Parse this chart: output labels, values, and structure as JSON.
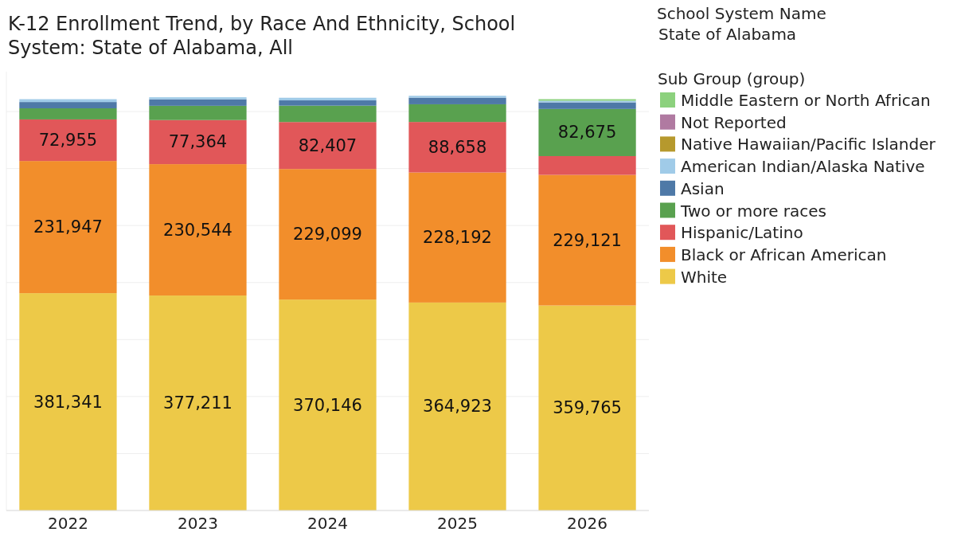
{
  "chart_data": {
    "type": "bar",
    "stacked": true,
    "title": "K-12 Enrollment Trend, by Race And Ethnicity, School System: State of Alabama, All",
    "annotations": [
      "School System Name",
      "State of Alabama"
    ],
    "legend_title": "Sub Group (group)",
    "legend": "right",
    "grid": "y",
    "tick_labels": "x",
    "ylim": [
      0,
      770000
    ],
    "yticks": [
      {
        "value": 0,
        "label": null
      },
      {
        "value": 100000,
        "label": null
      },
      {
        "value": 200000,
        "label": null
      },
      {
        "value": 300000,
        "label": null
      },
      {
        "value": 400000,
        "label": null
      },
      {
        "value": 500000,
        "label": null
      },
      {
        "value": 600000,
        "label": null
      },
      {
        "value": 700000,
        "label": null
      }
    ],
    "categories": [
      "2022",
      "2023",
      "2024",
      "2025",
      "2026"
    ],
    "series": [
      {
        "name": "White",
        "color": "#edc948",
        "values": [
          381341,
          377211,
          370146,
          364923,
          359765
        ],
        "value_labels": [
          "381,341",
          "377,211",
          "370,146",
          "364,923",
          "359,765"
        ]
      },
      {
        "name": "Black or African American",
        "color": "#f28e2b",
        "values": [
          231947,
          230544,
          229099,
          228192,
          229121
        ],
        "value_labels": [
          "231,947",
          "230,544",
          "229,099",
          "228,192",
          "229,121"
        ]
      },
      {
        "name": "Hispanic/Latino",
        "color": "#e15759",
        "values": [
          72955,
          77364,
          82407,
          88658,
          33000
        ],
        "value_labels": [
          "72,955",
          "77,364",
          "82,407",
          "88,658",
          null
        ]
      },
      {
        "name": "Two or more races",
        "color": "#59a14f",
        "values": [
          19500,
          25000,
          28700,
          31000,
          82675
        ],
        "value_labels": [
          null,
          null,
          null,
          null,
          "82,675"
        ]
      },
      {
        "name": "Asian",
        "color": "#4e79a7",
        "values": [
          11000,
          11500,
          9300,
          11600,
          11600
        ]
      },
      {
        "name": "American Indian/Alaska Native",
        "color": "#a0cbe8",
        "values": [
          5000,
          3500,
          4600,
          3300,
          2800
        ]
      },
      {
        "name": "Native Hawaiian/Pacific Islander",
        "color": "#b6992d",
        "values": [
          null,
          null,
          null,
          null,
          null
        ]
      },
      {
        "name": "Not Reported",
        "color": "#b07aa1",
        "values": [
          null,
          null,
          null,
          null,
          null
        ]
      },
      {
        "name": "Middle Eastern or North African",
        "color": "#8cd17d",
        "values": [
          null,
          null,
          null,
          null,
          2800
        ]
      }
    ]
  }
}
